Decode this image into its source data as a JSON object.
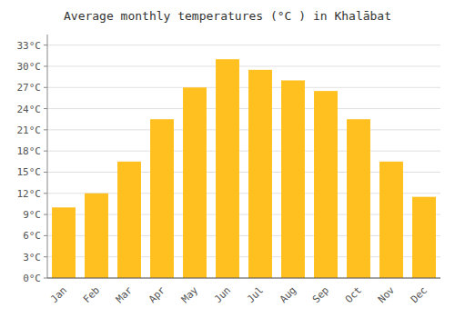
{
  "chart_data": {
    "type": "bar",
    "title": "Average monthly temperatures (°C ) in Khalābat",
    "categories": [
      "Jan",
      "Feb",
      "Mar",
      "Apr",
      "May",
      "Jun",
      "Jul",
      "Aug",
      "Sep",
      "Oct",
      "Nov",
      "Dec"
    ],
    "values": [
      10.0,
      12.0,
      16.5,
      22.5,
      27.0,
      31.0,
      29.5,
      28.0,
      26.5,
      22.5,
      16.5,
      11.5
    ],
    "color": "#FFC020",
    "ylim": [
      0,
      34.5
    ],
    "yticks": [
      {
        "value": 0,
        "label": "0°C"
      },
      {
        "value": 3,
        "label": "3°C"
      },
      {
        "value": 6,
        "label": "6°C"
      },
      {
        "value": 9,
        "label": "9°C"
      },
      {
        "value": 12,
        "label": "12°C"
      },
      {
        "value": 15,
        "label": "15°C"
      },
      {
        "value": 18,
        "label": "18°C"
      },
      {
        "value": 21,
        "label": "21°C"
      },
      {
        "value": 24,
        "label": "24°C"
      },
      {
        "value": 27,
        "label": "27°C"
      },
      {
        "value": 30,
        "label": "30°C"
      },
      {
        "value": 33,
        "label": "33°C"
      }
    ],
    "grid": true
  }
}
